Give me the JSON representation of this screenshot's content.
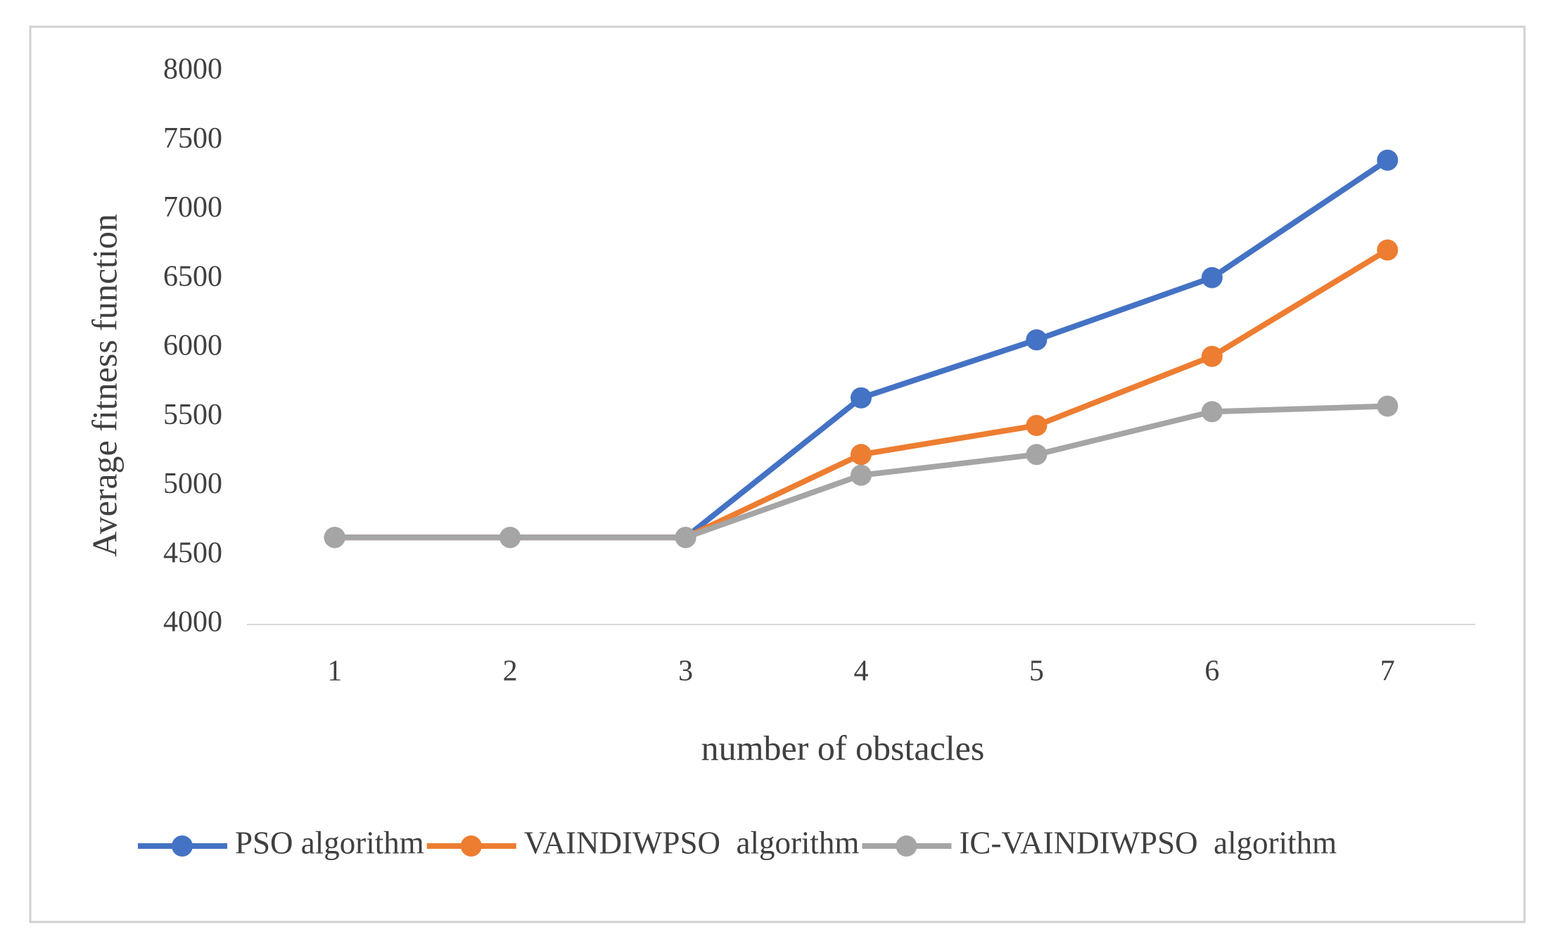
{
  "chart_data": {
    "type": "line",
    "x_label": "number of obstacles",
    "y_label": "Average fitness function",
    "categories": [
      "1",
      "2",
      "3",
      "4",
      "5",
      "6",
      "7"
    ],
    "series": [
      {
        "name": "PSO algorithm",
        "color": "#4472c4",
        "values": [
          4630,
          4630,
          4630,
          5640,
          6060,
          6510,
          7360
        ]
      },
      {
        "name": "VAINDIWPSO  algorithm",
        "color": "#ed7d31",
        "values": [
          4630,
          4630,
          4630,
          5230,
          5440,
          5940,
          6710
        ]
      },
      {
        "name": "IC-VAINDIWPSO  algorithm",
        "color": "#a5a5a5",
        "values": [
          4630,
          4630,
          4630,
          5080,
          5230,
          5540,
          5580
        ]
      }
    ],
    "ylim": [
      4000,
      8000
    ],
    "yticks": [
      4000,
      4500,
      5000,
      5500,
      6000,
      6500,
      7000,
      7500,
      8000
    ],
    "grid": false,
    "legend": "bottom"
  }
}
